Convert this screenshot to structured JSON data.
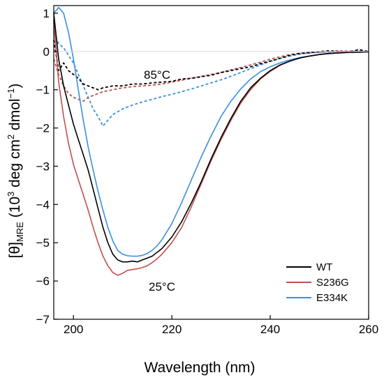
{
  "chart_data": {
    "type": "line",
    "title": "",
    "xlabel": "Wavelength (nm)",
    "ylabel": {
      "main": "[θ]",
      "subscript": "MRE",
      "open": " (10",
      "exp1": "3",
      "mid": " deg cm",
      "exp2": "2",
      "mid2": " dmol",
      "exp3": "−1",
      "close": ")"
    },
    "xlim": [
      196,
      260
    ],
    "ylim": [
      -7,
      1.2
    ],
    "xticks": [
      200,
      220,
      240,
      260
    ],
    "yticks": [
      1,
      0,
      -1,
      -2,
      -3,
      -4,
      -5,
      -6,
      -7
    ],
    "xtick_labels": [
      "200",
      "220",
      "240",
      "260"
    ],
    "ytick_labels": [
      "1",
      "0",
      "−1",
      "−2",
      "−3",
      "−4",
      "−5",
      "−6",
      "−7"
    ],
    "grid": false,
    "legend_position": "bottom-right",
    "legend": [
      "WT",
      "S236G",
      "E334K"
    ],
    "annotations": [
      "85°C",
      "25°C"
    ],
    "colors": {
      "WT": "#000000",
      "S236G": "#c0504d",
      "E334K": "#3a8fde"
    },
    "series": [
      {
        "name": "WT",
        "condition": "25°C",
        "style": "solid",
        "x": [
          196,
          197,
          198,
          199,
          200,
          201,
          202,
          203,
          204,
          205,
          206,
          207,
          208,
          209,
          210,
          211,
          212,
          213,
          214,
          215,
          216,
          217,
          218,
          220,
          222,
          224,
          226,
          228,
          230,
          232,
          234,
          236,
          238,
          240,
          242,
          244,
          246,
          248,
          250,
          252,
          254,
          256,
          258,
          260
        ],
        "y": [
          1.0,
          -0.2,
          -0.9,
          -1.4,
          -1.9,
          -2.3,
          -2.7,
          -3.1,
          -3.6,
          -4.1,
          -4.6,
          -5.0,
          -5.3,
          -5.45,
          -5.5,
          -5.5,
          -5.48,
          -5.5,
          -5.45,
          -5.4,
          -5.35,
          -5.25,
          -5.15,
          -4.85,
          -4.45,
          -3.95,
          -3.4,
          -2.8,
          -2.25,
          -1.75,
          -1.3,
          -0.95,
          -0.7,
          -0.5,
          -0.35,
          -0.25,
          -0.17,
          -0.12,
          -0.08,
          -0.05,
          -0.04,
          -0.02,
          -0.02,
          -0.01
        ]
      },
      {
        "name": "S236G",
        "condition": "25°C",
        "style": "solid",
        "x": [
          196,
          197,
          198,
          199,
          200,
          201,
          202,
          203,
          204,
          205,
          206,
          207,
          208,
          209,
          210,
          211,
          212,
          213,
          214,
          215,
          216,
          217,
          218,
          220,
          222,
          224,
          226,
          228,
          230,
          232,
          234,
          236,
          238,
          240,
          242,
          244,
          246,
          248,
          250,
          252,
          254,
          256,
          258,
          260
        ],
        "y": [
          0.8,
          -0.8,
          -1.7,
          -2.4,
          -2.95,
          -3.35,
          -3.75,
          -4.15,
          -4.6,
          -5.0,
          -5.35,
          -5.6,
          -5.78,
          -5.85,
          -5.8,
          -5.72,
          -5.7,
          -5.68,
          -5.65,
          -5.6,
          -5.52,
          -5.42,
          -5.3,
          -5.0,
          -4.6,
          -4.05,
          -3.45,
          -2.85,
          -2.3,
          -1.8,
          -1.35,
          -1.0,
          -0.72,
          -0.52,
          -0.36,
          -0.25,
          -0.17,
          -0.12,
          -0.08,
          -0.05,
          -0.03,
          -0.02,
          -0.02,
          -0.01
        ]
      },
      {
        "name": "E334K",
        "condition": "25°C",
        "style": "solid",
        "x": [
          196,
          197,
          198,
          199,
          200,
          201,
          202,
          203,
          204,
          205,
          206,
          207,
          208,
          209,
          210,
          211,
          212,
          213,
          214,
          215,
          216,
          217,
          218,
          220,
          222,
          224,
          226,
          228,
          230,
          232,
          234,
          236,
          238,
          240,
          242,
          244,
          246,
          248,
          250,
          252,
          254,
          256,
          258,
          260
        ],
        "y": [
          1.0,
          1.15,
          1.0,
          0.5,
          -0.2,
          -1.0,
          -1.8,
          -2.5,
          -3.1,
          -3.65,
          -4.15,
          -4.6,
          -4.95,
          -5.2,
          -5.3,
          -5.34,
          -5.35,
          -5.35,
          -5.33,
          -5.28,
          -5.2,
          -5.08,
          -4.92,
          -4.5,
          -3.95,
          -3.35,
          -2.75,
          -2.2,
          -1.7,
          -1.3,
          -0.98,
          -0.72,
          -0.53,
          -0.4,
          -0.3,
          -0.22,
          -0.16,
          -0.12,
          -0.08,
          -0.06,
          -0.04,
          -0.03,
          -0.02,
          -0.01
        ]
      },
      {
        "name": "WT",
        "condition": "85°C",
        "style": "dashed",
        "x": [
          196,
          197,
          198,
          199,
          200,
          201,
          202,
          203,
          204,
          205,
          206,
          208,
          210,
          212,
          214,
          216,
          218,
          220,
          222,
          224,
          226,
          228,
          230,
          232,
          234,
          236,
          238,
          240,
          242,
          244,
          246,
          248,
          250,
          252,
          254,
          256,
          258,
          260
        ],
        "y": [
          0.3,
          -0.5,
          -0.3,
          -0.5,
          -0.6,
          -0.7,
          -0.85,
          -0.9,
          -0.95,
          -1.0,
          -0.95,
          -0.9,
          -0.9,
          -0.85,
          -0.85,
          -0.82,
          -0.8,
          -0.78,
          -0.72,
          -0.7,
          -0.66,
          -0.62,
          -0.55,
          -0.5,
          -0.45,
          -0.4,
          -0.32,
          -0.25,
          -0.18,
          -0.1,
          -0.05,
          -0.03,
          0.0,
          0.02,
          0.0,
          -0.02,
          0.05,
          0.0
        ]
      },
      {
        "name": "S236G",
        "condition": "85°C",
        "style": "dashed",
        "x": [
          196,
          197,
          198,
          199,
          200,
          201,
          202,
          203,
          204,
          205,
          206,
          208,
          210,
          212,
          214,
          216,
          218,
          220,
          222,
          224,
          226,
          228,
          230,
          232,
          234,
          236,
          238,
          240,
          242,
          244,
          246,
          248,
          250,
          252,
          254,
          256,
          258,
          260
        ],
        "y": [
          -0.2,
          -0.6,
          -0.9,
          -1.1,
          -1.2,
          -1.25,
          -1.3,
          -1.2,
          -1.15,
          -1.1,
          -1.05,
          -1.0,
          -0.95,
          -0.92,
          -0.9,
          -0.88,
          -0.85,
          -0.8,
          -0.75,
          -0.7,
          -0.65,
          -0.6,
          -0.55,
          -0.48,
          -0.42,
          -0.35,
          -0.28,
          -0.2,
          -0.14,
          -0.08,
          -0.05,
          -0.03,
          -0.02,
          0.0,
          0.02,
          0.01,
          0.03,
          0.0
        ]
      },
      {
        "name": "E334K",
        "condition": "85°C",
        "style": "dashed",
        "x": [
          196,
          197,
          198,
          199,
          200,
          201,
          202,
          203,
          204,
          205,
          206,
          207,
          208,
          210,
          212,
          214,
          216,
          218,
          220,
          222,
          224,
          226,
          228,
          230,
          232,
          234,
          236,
          238,
          240,
          242,
          244,
          246,
          248,
          250,
          252,
          254,
          256,
          258,
          260
        ],
        "y": [
          0.5,
          0.2,
          0.1,
          -0.1,
          -0.3,
          -0.6,
          -0.9,
          -1.2,
          -1.5,
          -1.7,
          -1.95,
          -1.8,
          -1.65,
          -1.5,
          -1.4,
          -1.32,
          -1.25,
          -1.18,
          -1.12,
          -1.05,
          -0.98,
          -0.9,
          -0.82,
          -0.74,
          -0.65,
          -0.55,
          -0.45,
          -0.35,
          -0.26,
          -0.18,
          -0.12,
          -0.07,
          -0.04,
          -0.02,
          -0.01,
          0.0,
          0.0,
          0.0,
          0.0
        ]
      }
    ]
  }
}
